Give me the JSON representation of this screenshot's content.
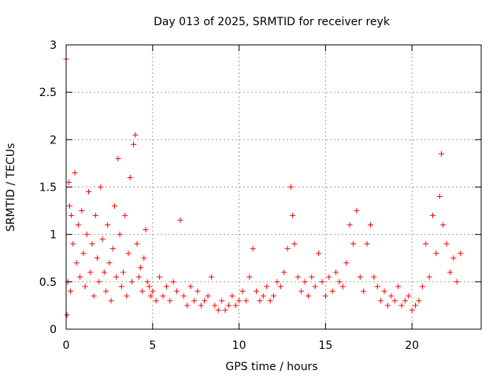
{
  "chart_data": {
    "type": "scatter",
    "title": "Day 013 of 2025, SRMTID for receiver reyk",
    "xlabel": "GPS time / hours",
    "ylabel": "SRMTID / TECUs",
    "xlim": [
      0,
      24
    ],
    "ylim": [
      0,
      3
    ],
    "xticks": [
      0,
      5,
      10,
      15,
      20
    ],
    "yticks": [
      0,
      0.5,
      1,
      1.5,
      2,
      2.5,
      3
    ],
    "xtick_labels": [
      "0",
      "5",
      "10",
      "15",
      "20"
    ],
    "ytick_labels": [
      "0",
      "0.5",
      "1",
      "1.5",
      "2",
      "2.5",
      "3"
    ],
    "grid": true,
    "marker": "+",
    "color": "#ff0000",
    "series": [
      {
        "name": "SRMTID",
        "x": [
          0.0,
          0.05,
          0.1,
          0.15,
          0.2,
          0.25,
          0.3,
          0.4,
          0.5,
          0.6,
          0.7,
          0.8,
          0.9,
          1.0,
          1.1,
          1.2,
          1.3,
          1.4,
          1.5,
          1.6,
          1.7,
          1.8,
          1.9,
          2.0,
          2.1,
          2.2,
          2.3,
          2.4,
          2.5,
          2.6,
          2.7,
          2.8,
          2.9,
          3.0,
          3.1,
          3.2,
          3.3,
          3.4,
          3.5,
          3.6,
          3.7,
          3.8,
          3.9,
          4.0,
          4.1,
          4.2,
          4.3,
          4.4,
          4.5,
          4.6,
          4.7,
          4.8,
          4.9,
          5.0,
          5.2,
          5.4,
          5.6,
          5.8,
          6.0,
          6.2,
          6.4,
          6.6,
          6.8,
          7.0,
          7.2,
          7.4,
          7.6,
          7.8,
          8.0,
          8.2,
          8.4,
          8.6,
          8.8,
          9.0,
          9.2,
          9.4,
          9.6,
          9.8,
          10.0,
          10.2,
          10.4,
          10.6,
          10.8,
          11.0,
          11.2,
          11.4,
          11.6,
          11.8,
          12.0,
          12.2,
          12.4,
          12.6,
          12.8,
          13.0,
          13.1,
          13.2,
          13.4,
          13.6,
          13.8,
          14.0,
          14.2,
          14.4,
          14.6,
          14.8,
          15.0,
          15.2,
          15.4,
          15.6,
          15.8,
          16.0,
          16.2,
          16.4,
          16.6,
          16.8,
          17.0,
          17.2,
          17.4,
          17.6,
          17.8,
          18.0,
          18.2,
          18.4,
          18.6,
          18.8,
          19.0,
          19.2,
          19.4,
          19.6,
          19.8,
          20.0,
          20.2,
          20.4,
          20.6,
          20.8,
          21.0,
          21.2,
          21.4,
          21.6,
          21.7,
          21.8,
          22.0,
          22.2,
          22.4,
          22.6,
          22.8
        ],
        "y": [
          2.85,
          0.15,
          0.5,
          1.55,
          1.3,
          0.4,
          1.2,
          0.9,
          1.65,
          0.7,
          1.1,
          0.55,
          1.25,
          0.8,
          0.45,
          1.0,
          1.45,
          0.6,
          0.9,
          0.35,
          1.2,
          0.75,
          0.5,
          1.5,
          0.95,
          0.6,
          0.4,
          1.1,
          0.7,
          0.3,
          0.85,
          1.3,
          0.55,
          1.8,
          1.0,
          0.45,
          0.6,
          1.2,
          0.35,
          0.8,
          1.6,
          0.5,
          1.95,
          2.05,
          0.9,
          0.55,
          0.65,
          0.4,
          0.75,
          1.05,
          0.5,
          0.45,
          0.35,
          0.4,
          0.3,
          0.55,
          0.35,
          0.45,
          0.3,
          0.5,
          0.4,
          1.15,
          0.35,
          0.25,
          0.45,
          0.3,
          0.4,
          0.25,
          0.3,
          0.35,
          0.55,
          0.25,
          0.2,
          0.3,
          0.2,
          0.25,
          0.35,
          0.25,
          0.3,
          0.4,
          0.3,
          0.55,
          0.85,
          0.4,
          0.3,
          0.35,
          0.45,
          0.3,
          0.35,
          0.5,
          0.45,
          0.6,
          0.85,
          1.5,
          1.2,
          0.9,
          0.55,
          0.4,
          0.5,
          0.35,
          0.55,
          0.45,
          0.8,
          0.5,
          0.35,
          0.55,
          0.4,
          0.6,
          0.5,
          0.45,
          0.7,
          1.1,
          0.9,
          1.25,
          0.55,
          0.4,
          0.9,
          1.1,
          0.55,
          0.45,
          0.3,
          0.4,
          0.25,
          0.35,
          0.3,
          0.45,
          0.25,
          0.3,
          0.35,
          0.2,
          0.25,
          0.3,
          0.45,
          0.9,
          0.55,
          1.2,
          0.8,
          1.4,
          1.85,
          1.1,
          0.9,
          0.6,
          0.75,
          0.5,
          0.8
        ]
      }
    ]
  }
}
